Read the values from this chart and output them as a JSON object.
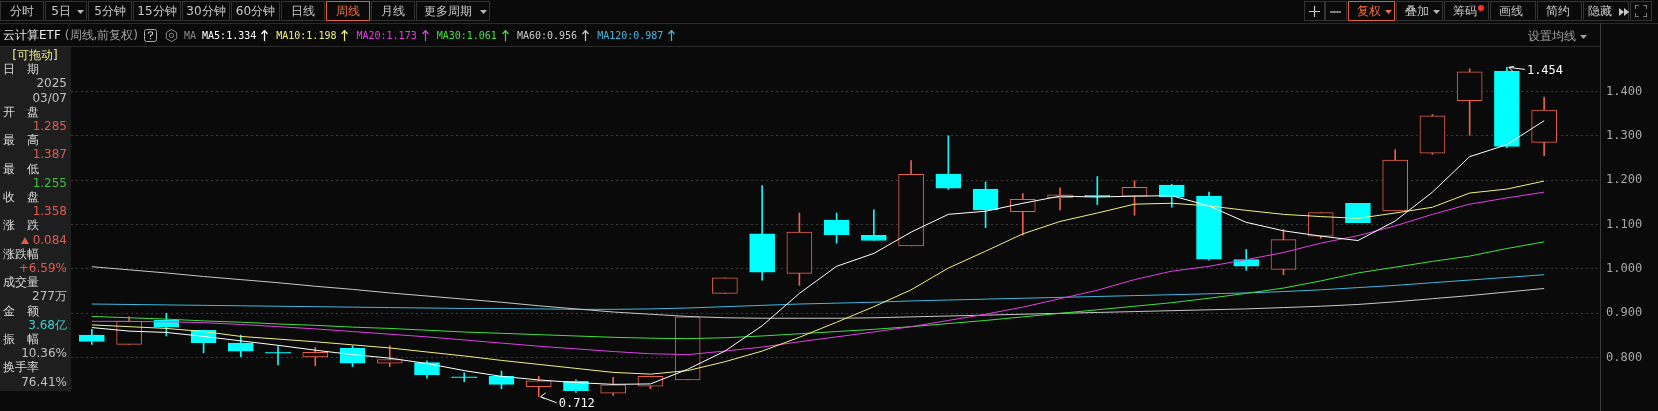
{
  "chart_data": {
    "type": "candlestick",
    "title": "云计算ETF",
    "subtitle": "(周线,前复权)",
    "legend": "top left",
    "grid": "y",
    "tick_labels": "y",
    "marker": "none",
    "categories": [
      null,
      null,
      null,
      null,
      null,
      null,
      null,
      null,
      null,
      null,
      null,
      null,
      null,
      null,
      null,
      null,
      null,
      null,
      null,
      null,
      null,
      null,
      null,
      null,
      null,
      null,
      null,
      null,
      null,
      null,
      null,
      null,
      null,
      null,
      null,
      null,
      null,
      null,
      null,
      null
    ],
    "ohlc": [
      [
        0.851,
        0.864,
        0.83,
        0.837
      ],
      [
        0.83,
        0.892,
        0.83,
        0.882
      ],
      [
        0.884,
        0.9,
        0.849,
        0.869
      ],
      [
        0.862,
        0.862,
        0.811,
        0.834
      ],
      [
        0.833,
        0.851,
        0.802,
        0.815
      ],
      [
        0.811,
        0.825,
        0.784,
        0.81
      ],
      [
        0.802,
        0.823,
        0.782,
        0.812
      ],
      [
        0.821,
        0.827,
        0.78,
        0.788
      ],
      [
        0.788,
        0.827,
        0.78,
        0.796
      ],
      [
        0.789,
        0.793,
        0.754,
        0.761
      ],
      [
        0.756,
        0.766,
        0.746,
        0.755
      ],
      [
        0.758,
        0.77,
        0.73,
        0.74
      ],
      [
        0.735,
        0.758,
        0.712,
        0.748
      ],
      [
        0.747,
        0.75,
        0.722,
        0.726
      ],
      [
        0.72,
        0.756,
        0.715,
        0.739
      ],
      [
        0.736,
        0.758,
        0.73,
        0.758
      ],
      [
        0.75,
        0.892,
        0.75,
        0.892
      ],
      [
        0.945,
        0.98,
        0.945,
        0.98
      ],
      [
        1.079,
        1.188,
        0.975,
        0.993
      ],
      [
        0.99,
        1.126,
        0.963,
        1.083
      ],
      [
        1.11,
        1.126,
        1.058,
        1.077
      ],
      [
        1.076,
        1.133,
        1.064,
        1.064
      ],
      [
        1.052,
        1.244,
        1.052,
        1.213
      ],
      [
        1.214,
        1.3,
        1.179,
        1.182
      ],
      [
        1.18,
        1.196,
        1.093,
        1.133
      ],
      [
        1.129,
        1.17,
        1.076,
        1.157
      ],
      [
        1.16,
        1.183,
        1.133,
        1.167
      ],
      [
        1.166,
        1.208,
        1.145,
        1.163
      ],
      [
        1.164,
        1.199,
        1.121,
        1.184
      ],
      [
        1.189,
        1.191,
        1.139,
        1.163
      ],
      [
        1.164,
        1.173,
        1.02,
        1.022
      ],
      [
        1.021,
        1.044,
        0.997,
        1.006
      ],
      [
        0.999,
        1.089,
        0.987,
        1.066
      ],
      [
        1.074,
        1.127,
        1.069,
        1.127
      ],
      [
        1.148,
        1.148,
        1.104,
        1.104
      ],
      [
        1.131,
        1.269,
        1.131,
        1.245
      ],
      [
        1.261,
        1.348,
        1.258,
        1.345
      ],
      [
        1.379,
        1.451,
        1.301,
        1.444
      ],
      [
        1.446,
        1.454,
        1.273,
        1.276
      ],
      [
        1.285,
        1.387,
        1.255,
        1.358
      ]
    ],
    "colors": [
      "#00ffff",
      "#e8604c",
      "#00ffff",
      "#00ffff",
      "#00ffff",
      "#00ffff",
      "#e8604c",
      "#00ffff",
      "#e8604c",
      "#00ffff",
      "#00ffff",
      "#00ffff",
      "#e8604c",
      "#00ffff",
      "#e8604c",
      "#e8604c",
      "#e8604c",
      "#e8604c",
      "#00ffff",
      "#e8604c",
      "#00ffff",
      "#00ffff",
      "#e8604c",
      "#00ffff",
      "#00ffff",
      "#e8604c",
      "#e8604c",
      "#00ffff",
      "#e8604c",
      "#00ffff",
      "#00ffff",
      "#00ffff",
      "#e8604c",
      "#e8604c",
      "#00ffff",
      "#e8604c",
      "#e8604c",
      "#e8604c",
      "#00ffff",
      "#e8604c"
    ],
    "series": [
      {
        "name": "MA5:1.334",
        "type": "line",
        "color": "#ffffff",
        "values": [
          0.868,
          0.86,
          0.857,
          0.848,
          0.838,
          0.828,
          0.817,
          0.807,
          0.799,
          0.787,
          0.771,
          0.758,
          0.75,
          0.744,
          0.74,
          0.741,
          0.774,
          0.815,
          0.872,
          0.945,
          1.006,
          1.035,
          1.083,
          1.123,
          1.13,
          1.148,
          1.164,
          1.162,
          1.164,
          1.165,
          1.142,
          1.105,
          1.086,
          1.074,
          1.064,
          1.108,
          1.173,
          1.253,
          1.28,
          1.334
        ]
      },
      {
        "name": "MA10:1.198",
        "type": "line",
        "color": "#f0f080",
        "values": [
          0.874,
          0.87,
          0.866,
          0.859,
          0.848,
          0.842,
          0.836,
          0.829,
          0.822,
          0.813,
          0.804,
          0.794,
          0.785,
          0.776,
          0.767,
          0.763,
          0.771,
          0.791,
          0.815,
          0.846,
          0.88,
          0.915,
          0.953,
          1.002,
          1.04,
          1.079,
          1.107,
          1.126,
          1.146,
          1.148,
          1.142,
          1.132,
          1.123,
          1.118,
          1.114,
          1.126,
          1.139,
          1.171,
          1.18,
          1.198
        ]
      },
      {
        "name": "MA20:1.173",
        "type": "line",
        "color": "#e040e0",
        "values": [
          0.882,
          0.882,
          0.881,
          0.879,
          0.875,
          0.87,
          0.865,
          0.859,
          0.853,
          0.847,
          0.84,
          0.833,
          0.826,
          0.82,
          0.814,
          0.809,
          0.807,
          0.815,
          0.824,
          0.836,
          0.847,
          0.858,
          0.87,
          0.884,
          0.898,
          0.914,
          0.933,
          0.952,
          0.976,
          0.995,
          1.006,
          1.021,
          1.037,
          1.058,
          1.075,
          1.097,
          1.123,
          1.146,
          1.16,
          1.173
        ]
      },
      {
        "name": "MA30:1.061",
        "type": "line",
        "color": "#40e040",
        "values": [
          0.893,
          0.89,
          0.887,
          0.883,
          0.88,
          0.876,
          0.873,
          0.869,
          0.866,
          0.862,
          0.858,
          0.855,
          0.852,
          0.849,
          0.846,
          0.844,
          0.843,
          0.845,
          0.849,
          0.854,
          0.859,
          0.864,
          0.87,
          0.877,
          0.884,
          0.892,
          0.9,
          0.908,
          0.916,
          0.924,
          0.934,
          0.945,
          0.957,
          0.973,
          0.991,
          1.004,
          1.017,
          1.029,
          1.046,
          1.061
        ]
      },
      {
        "name": "MA60:0.956",
        "type": "line",
        "color": "#c8c8c8",
        "values": [
          1.005,
          0.998,
          0.991,
          0.983,
          0.976,
          0.969,
          0.961,
          0.954,
          0.946,
          0.939,
          0.932,
          0.925,
          0.917,
          0.91,
          0.903,
          0.898,
          0.893,
          0.89,
          0.889,
          0.889,
          0.889,
          0.89,
          0.892,
          0.894,
          0.896,
          0.898,
          0.9,
          0.902,
          0.904,
          0.906,
          0.908,
          0.91,
          0.913,
          0.916,
          0.92,
          0.926,
          0.933,
          0.94,
          0.948,
          0.956
        ]
      },
      {
        "name": "MA120:0.987",
        "type": "line",
        "color": "#40b8e0",
        "values": [
          0.921,
          0.92,
          0.919,
          0.918,
          0.917,
          0.916,
          0.915,
          0.914,
          0.913,
          0.912,
          0.911,
          0.911,
          0.91,
          0.909,
          0.909,
          0.91,
          0.912,
          0.915,
          0.918,
          0.921,
          0.923,
          0.925,
          0.928,
          0.93,
          0.932,
          0.934,
          0.936,
          0.938,
          0.94,
          0.942,
          0.944,
          0.946,
          0.949,
          0.953,
          0.958,
          0.963,
          0.969,
          0.975,
          0.981,
          0.987
        ]
      }
    ],
    "ylim": [
      0.68,
      1.5
    ],
    "yticks": [
      {
        "value": 0.8,
        "label": "0.800"
      },
      {
        "value": 0.9,
        "label": "0.900"
      },
      {
        "value": 1.0,
        "label": "1.000"
      },
      {
        "value": 1.1,
        "label": "1.100"
      },
      {
        "value": 1.2,
        "label": "1.200"
      },
      {
        "value": 1.3,
        "label": "1.300"
      },
      {
        "value": 1.4,
        "label": "1.400"
      }
    ],
    "annotations": [
      "分时",
      "5日",
      "5分钟",
      "15分钟",
      "30分钟",
      "60分钟",
      "日线",
      "周线",
      "月线",
      "更多周期",
      "复权",
      "叠加",
      "筹码",
      "画线",
      "简约",
      "隐藏",
      "设置均线",
      "[可拖动]",
      "日期",
      "2025",
      "03/07",
      "开盘",
      "1.285",
      "最高",
      "1.387",
      "最低",
      "1.255",
      "收盘",
      "1.358",
      "涨跌",
      "0.084",
      "涨跌幅",
      "+6.59%",
      "成交量",
      "277万",
      "金额",
      "3.68亿",
      "振幅",
      "10.36%",
      "换手率",
      "76.41%",
      "1.454",
      "0.712",
      "MA"
    ]
  }
}
